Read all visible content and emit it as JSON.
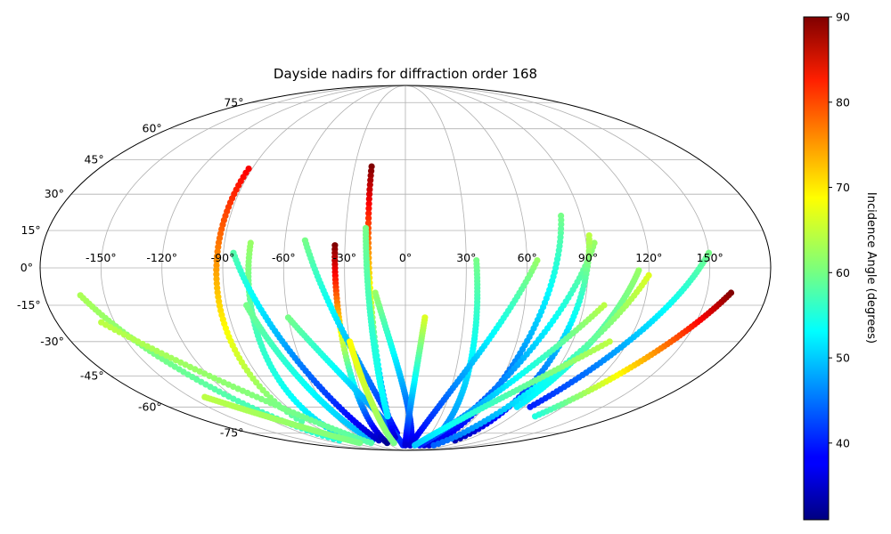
{
  "chart_data": {
    "type": "scatter",
    "projection": "mollweide",
    "title": "Dayside nadirs for diffraction order 168",
    "lon_ticks": [
      "-150°",
      "-120°",
      "-90°",
      "-60°",
      "-30°",
      "0°",
      "30°",
      "60°",
      "90°",
      "120°",
      "150°"
    ],
    "lat_ticks": [
      "75°",
      "60°",
      "45°",
      "30°",
      "15°",
      "0°",
      "-15°",
      "-30°",
      "-45°",
      "-60°",
      "-75°"
    ],
    "grid": true,
    "colorbar": {
      "label": "Incidence Angle (degrees)",
      "colormap": "jet",
      "range": [
        31,
        90
      ],
      "ticks": [
        "40",
        "50",
        "60",
        "70",
        "80",
        "90"
      ]
    },
    "tracks": [
      {
        "start": [
          -92,
          41
        ],
        "end": [
          -95,
          -68
        ],
        "incidence_start": 83,
        "incidence_end": 58
      },
      {
        "start": [
          -77,
          10
        ],
        "end": [
          -80,
          -80
        ],
        "incidence_start": 62,
        "incidence_end": 50
      },
      {
        "start": [
          -80,
          -15
        ],
        "end": [
          -50,
          -80
        ],
        "incidence_start": 60,
        "incidence_end": 48
      },
      {
        "start": [
          -85,
          6
        ],
        "end": [
          -40,
          -80
        ],
        "incidence_start": 58,
        "incidence_end": 35
      },
      {
        "start": [
          -35,
          9
        ],
        "end": [
          -32,
          -82
        ],
        "incidence_start": 90,
        "incidence_end": 32
      },
      {
        "start": [
          -50,
          11
        ],
        "end": [
          -10,
          -75
        ],
        "incidence_start": 60,
        "incidence_end": 38
      },
      {
        "start": [
          -60,
          -20
        ],
        "end": [
          -5,
          -84
        ],
        "incidence_start": 60,
        "incidence_end": 40
      },
      {
        "start": [
          -20,
          42
        ],
        "end": [
          -14,
          -78
        ],
        "incidence_start": 90,
        "incidence_end": 36
      },
      {
        "start": [
          -20,
          16
        ],
        "end": [
          -15,
          -65
        ],
        "incidence_start": 60,
        "incidence_end": 52
      },
      {
        "start": [
          -15,
          -10
        ],
        "end": [
          10,
          -84
        ],
        "incidence_start": 62,
        "incidence_end": 36
      },
      {
        "start": [
          -30,
          -30
        ],
        "end": [
          -20,
          -82
        ],
        "incidence_start": 68,
        "incidence_end": 60
      },
      {
        "start": [
          10,
          -20
        ],
        "end": [
          0,
          -84
        ],
        "incidence_start": 66,
        "incidence_end": 36
      },
      {
        "start": [
          35,
          3
        ],
        "end": [
          40,
          -80
        ],
        "incidence_start": 60,
        "incidence_end": 45
      },
      {
        "start": [
          65,
          3
        ],
        "end": [
          10,
          -84
        ],
        "incidence_start": 62,
        "incidence_end": 36
      },
      {
        "start": [
          80,
          21
        ],
        "end": [
          50,
          -84
        ],
        "incidence_start": 60,
        "incidence_end": 36
      },
      {
        "start": [
          94,
          10
        ],
        "end": [
          40,
          -84
        ],
        "incidence_start": 62,
        "incidence_end": 36
      },
      {
        "start": [
          92,
          13
        ],
        "end": [
          75,
          -80
        ],
        "incidence_start": 64,
        "incidence_end": 34
      },
      {
        "start": [
          115,
          -1
        ],
        "end": [
          85,
          -60
        ],
        "incidence_start": 62,
        "incidence_end": 52
      },
      {
        "start": [
          120,
          -3
        ],
        "end": [
          60,
          -84
        ],
        "incidence_start": 66,
        "incidence_end": 44
      },
      {
        "start": [
          150,
          6
        ],
        "end": [
          95,
          -60
        ],
        "incidence_start": 60,
        "incidence_end": 40
      },
      {
        "start": [
          162,
          -10
        ],
        "end": [
          110,
          -65
        ],
        "incidence_start": 90,
        "incidence_end": 55
      },
      {
        "start": [
          -162,
          -11
        ],
        "end": [
          -100,
          -80
        ],
        "incidence_start": 63,
        "incidence_end": 55
      },
      {
        "start": [
          -157,
          -22
        ],
        "end": [
          -60,
          -82
        ],
        "incidence_start": 64,
        "incidence_end": 58
      },
      {
        "start": [
          -140,
          -55
        ],
        "end": [
          -80,
          -82
        ],
        "incidence_start": 64,
        "incidence_end": 60
      },
      {
        "start": [
          100,
          -15
        ],
        "end": [
          30,
          -84
        ],
        "incidence_start": 64,
        "incidence_end": 40
      },
      {
        "start": [
          110,
          -30
        ],
        "end": [
          20,
          -84
        ],
        "incidence_start": 64,
        "incidence_end": 50
      }
    ]
  }
}
